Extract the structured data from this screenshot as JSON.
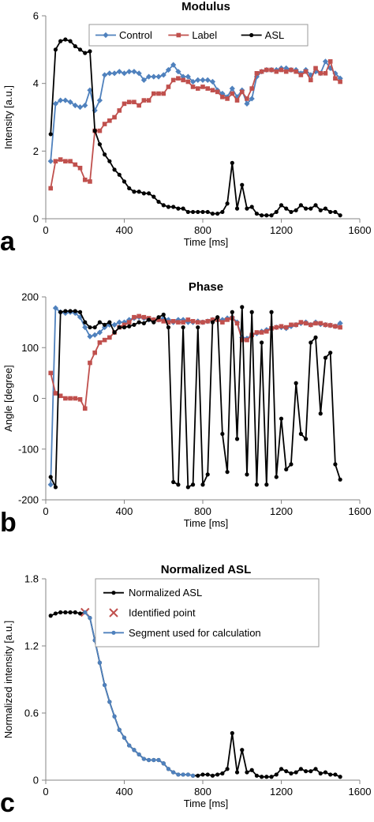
{
  "chart_data": [
    {
      "type": "line",
      "panel_letter": "a",
      "title": "Modulus",
      "xlabel": "Time [ms]",
      "ylabel": "Intensity [a.u.]",
      "xlim": [
        0,
        1600
      ],
      "ylim": [
        0,
        6
      ],
      "xticks": [
        0,
        400,
        800,
        1200,
        1600
      ],
      "yticks": [
        0,
        2,
        4,
        6
      ],
      "grid": false,
      "legend_position": "top",
      "series": [
        {
          "name": "Control",
          "color": "#4f81bd",
          "marker": "diamond",
          "x": [
            25,
            50,
            75,
            100,
            125,
            150,
            175,
            200,
            225,
            250,
            275,
            300,
            325,
            350,
            375,
            400,
            425,
            450,
            475,
            500,
            525,
            550,
            575,
            600,
            625,
            650,
            675,
            700,
            725,
            750,
            775,
            800,
            825,
            850,
            875,
            900,
            925,
            950,
            975,
            1000,
            1025,
            1050,
            1075,
            1100,
            1125,
            1150,
            1175,
            1200,
            1225,
            1250,
            1275,
            1300,
            1325,
            1350,
            1375,
            1400,
            1425,
            1450,
            1475,
            1500
          ],
          "y": [
            1.7,
            3.4,
            3.5,
            3.5,
            3.45,
            3.35,
            3.3,
            3.35,
            3.8,
            3.2,
            3.5,
            4.25,
            4.3,
            4.3,
            4.35,
            4.3,
            4.35,
            4.35,
            4.3,
            4.1,
            4.2,
            4.2,
            4.2,
            4.25,
            4.4,
            4.55,
            4.35,
            4.2,
            4.2,
            4.05,
            4.1,
            4.1,
            4.1,
            4.05,
            3.8,
            3.7,
            3.6,
            3.85,
            3.6,
            3.8,
            3.4,
            3.55,
            4.2,
            4.35,
            4.4,
            4.4,
            4.4,
            4.45,
            4.45,
            4.4,
            4.4,
            4.3,
            4.4,
            4.25,
            4.35,
            4.3,
            4.65,
            4.45,
            4.3,
            4.15
          ]
        },
        {
          "name": "Label",
          "color": "#c0504d",
          "marker": "square",
          "x": [
            25,
            50,
            75,
            100,
            125,
            150,
            175,
            200,
            225,
            250,
            275,
            300,
            325,
            350,
            375,
            400,
            425,
            450,
            475,
            500,
            525,
            550,
            575,
            600,
            625,
            650,
            675,
            700,
            725,
            750,
            775,
            800,
            825,
            850,
            875,
            900,
            925,
            950,
            975,
            1000,
            1025,
            1050,
            1075,
            1100,
            1125,
            1150,
            1175,
            1200,
            1225,
            1250,
            1275,
            1300,
            1325,
            1350,
            1375,
            1400,
            1425,
            1450,
            1475,
            1500
          ],
          "y": [
            0.9,
            1.7,
            1.75,
            1.7,
            1.7,
            1.6,
            1.5,
            1.15,
            1.1,
            2.6,
            2.6,
            2.8,
            2.9,
            3.0,
            3.2,
            3.4,
            3.45,
            3.45,
            3.35,
            3.5,
            3.5,
            3.7,
            3.7,
            3.7,
            3.9,
            4.1,
            4.15,
            4.1,
            4.05,
            3.9,
            3.85,
            3.9,
            3.85,
            3.8,
            3.75,
            3.6,
            3.55,
            3.7,
            3.5,
            3.75,
            3.55,
            3.85,
            4.3,
            4.35,
            4.4,
            4.4,
            4.35,
            4.4,
            4.35,
            4.4,
            4.35,
            4.25,
            4.35,
            4.1,
            4.45,
            4.3,
            4.3,
            4.65,
            4.15,
            4.05
          ]
        },
        {
          "name": "ASL",
          "color": "#000000",
          "marker": "circle",
          "x": [
            25,
            50,
            75,
            100,
            125,
            150,
            175,
            200,
            225,
            250,
            275,
            300,
            325,
            350,
            375,
            400,
            425,
            450,
            475,
            500,
            525,
            550,
            575,
            600,
            625,
            650,
            675,
            700,
            725,
            750,
            775,
            800,
            825,
            850,
            875,
            900,
            925,
            950,
            975,
            1000,
            1025,
            1050,
            1075,
            1100,
            1125,
            1150,
            1175,
            1200,
            1225,
            1250,
            1275,
            1300,
            1325,
            1350,
            1375,
            1400,
            1425,
            1450,
            1475,
            1500
          ],
          "y": [
            2.5,
            5.0,
            5.25,
            5.3,
            5.25,
            5.1,
            5.0,
            4.9,
            4.95,
            2.6,
            2.2,
            1.9,
            1.7,
            1.45,
            1.3,
            1.1,
            0.9,
            0.8,
            0.8,
            0.75,
            0.75,
            0.65,
            0.5,
            0.4,
            0.35,
            0.35,
            0.3,
            0.3,
            0.2,
            0.2,
            0.2,
            0.2,
            0.2,
            0.15,
            0.15,
            0.2,
            0.45,
            1.65,
            0.3,
            1.0,
            0.3,
            0.35,
            0.15,
            0.1,
            0.1,
            0.1,
            0.2,
            0.4,
            0.3,
            0.2,
            0.25,
            0.4,
            0.3,
            0.3,
            0.4,
            0.25,
            0.3,
            0.2,
            0.2,
            0.1
          ]
        }
      ]
    },
    {
      "type": "line",
      "panel_letter": "b",
      "title": "Phase",
      "xlabel": "Time [ms]",
      "ylabel": "Angle [degree]",
      "xlim": [
        0,
        1600
      ],
      "ylim": [
        -200,
        200
      ],
      "xticks": [
        0,
        400,
        800,
        1200,
        1600
      ],
      "yticks": [
        -200,
        -100,
        0,
        100,
        200
      ],
      "grid": false,
      "legend_position": "none",
      "series": [
        {
          "name": "Control",
          "color": "#4f81bd",
          "marker": "diamond",
          "x": [
            25,
            50,
            75,
            100,
            125,
            150,
            175,
            200,
            225,
            250,
            275,
            300,
            325,
            350,
            375,
            400,
            425,
            450,
            475,
            500,
            525,
            550,
            575,
            600,
            625,
            650,
            675,
            700,
            725,
            750,
            775,
            800,
            825,
            850,
            875,
            900,
            925,
            950,
            975,
            1000,
            1025,
            1050,
            1075,
            1100,
            1125,
            1150,
            1175,
            1200,
            1225,
            1250,
            1275,
            1300,
            1325,
            1350,
            1375,
            1400,
            1425,
            1450,
            1475,
            1500
          ],
          "y": [
            -170,
            178,
            170,
            168,
            170,
            168,
            160,
            140,
            122,
            125,
            130,
            140,
            145,
            145,
            150,
            150,
            155,
            158,
            160,
            158,
            155,
            155,
            155,
            158,
            155,
            150,
            155,
            155,
            150,
            150,
            152,
            150,
            152,
            155,
            155,
            155,
            158,
            160,
            150,
            120,
            118,
            125,
            128,
            132,
            135,
            138,
            140,
            140,
            138,
            142,
            145,
            148,
            150,
            145,
            150,
            146,
            145,
            144,
            142,
            148
          ]
        },
        {
          "name": "Label",
          "color": "#c0504d",
          "marker": "square",
          "x": [
            25,
            50,
            75,
            100,
            125,
            150,
            175,
            200,
            225,
            250,
            275,
            300,
            325,
            350,
            375,
            400,
            425,
            450,
            475,
            500,
            525,
            550,
            575,
            600,
            625,
            650,
            675,
            700,
            725,
            750,
            775,
            800,
            825,
            850,
            875,
            900,
            925,
            950,
            975,
            1000,
            1025,
            1050,
            1075,
            1100,
            1125,
            1150,
            1175,
            1200,
            1225,
            1250,
            1275,
            1300,
            1325,
            1350,
            1375,
            1400,
            1425,
            1450,
            1475,
            1500
          ],
          "y": [
            50,
            10,
            5,
            0,
            0,
            0,
            -2,
            -20,
            70,
            90,
            110,
            115,
            120,
            130,
            140,
            145,
            150,
            160,
            162,
            160,
            158,
            155,
            155,
            152,
            150,
            152,
            150,
            150,
            155,
            152,
            150,
            150,
            152,
            155,
            155,
            150,
            155,
            158,
            148,
            115,
            115,
            125,
            130,
            130,
            132,
            138,
            140,
            142,
            140,
            145,
            145,
            150,
            148,
            145,
            148,
            148,
            145,
            144,
            142,
            140
          ]
        },
        {
          "name": "ASL",
          "color": "#000000",
          "marker": "circle",
          "x": [
            25,
            50,
            75,
            100,
            125,
            150,
            175,
            200,
            225,
            250,
            275,
            300,
            325,
            350,
            375,
            400,
            425,
            450,
            475,
            500,
            525,
            550,
            575,
            600,
            625,
            650,
            675,
            700,
            725,
            750,
            775,
            800,
            825,
            850,
            875,
            900,
            925,
            950,
            975,
            1000,
            1025,
            1050,
            1075,
            1100,
            1125,
            1150,
            1175,
            1200,
            1225,
            1250,
            1275,
            1300,
            1325,
            1350,
            1375,
            1400,
            1425,
            1450,
            1475,
            1500
          ],
          "y": [
            -155,
            -175,
            170,
            172,
            172,
            172,
            170,
            150,
            140,
            140,
            150,
            145,
            150,
            130,
            140,
            140,
            142,
            145,
            150,
            148,
            155,
            150,
            160,
            165,
            140,
            -165,
            -170,
            140,
            -175,
            -170,
            140,
            -170,
            -150,
            150,
            160,
            -70,
            -145,
            170,
            -80,
            180,
            -150,
            170,
            -170,
            110,
            -170,
            170,
            -155,
            -40,
            -140,
            -130,
            30,
            -70,
            -80,
            110,
            120,
            -30,
            80,
            90,
            -130,
            -160
          ]
        }
      ]
    },
    {
      "type": "line",
      "panel_letter": "c",
      "title": "Normalized ASL",
      "xlabel": "Time [ms]",
      "ylabel": "Normalized intensity [a.u.]",
      "xlim": [
        0,
        1600
      ],
      "ylim": [
        0,
        1.8
      ],
      "xticks": [
        0,
        400,
        800,
        1200,
        1600
      ],
      "yticks": [
        0,
        0.6,
        1.2,
        1.8
      ],
      "grid": false,
      "legend_position": "top-right",
      "series": [
        {
          "name": "Normalized ASL",
          "color": "#000000",
          "marker": "circle",
          "x": [
            25,
            50,
            75,
            100,
            125,
            150,
            175,
            200,
            225,
            250,
            275,
            300,
            325,
            350,
            375,
            400,
            425,
            450,
            475,
            500,
            525,
            550,
            575,
            600,
            625,
            650,
            675,
            700,
            725,
            750,
            775,
            800,
            825,
            850,
            875,
            900,
            925,
            950,
            975,
            1000,
            1025,
            1050,
            1075,
            1100,
            1125,
            1150,
            1175,
            1200,
            1225,
            1250,
            1275,
            1300,
            1325,
            1350,
            1375,
            1400,
            1425,
            1450,
            1475,
            1500
          ],
          "y": [
            1.47,
            1.49,
            1.5,
            1.5,
            1.5,
            1.5,
            1.49,
            1.5,
            1.45,
            1.25,
            1.05,
            0.85,
            0.7,
            0.57,
            0.45,
            0.38,
            0.31,
            0.27,
            0.23,
            0.19,
            0.18,
            0.18,
            0.18,
            0.15,
            0.1,
            0.07,
            0.05,
            0.05,
            0.05,
            0.04,
            0.04,
            0.05,
            0.05,
            0.04,
            0.05,
            0.06,
            0.1,
            0.42,
            0.07,
            0.27,
            0.07,
            0.09,
            0.04,
            0.03,
            0.03,
            0.03,
            0.05,
            0.1,
            0.08,
            0.06,
            0.07,
            0.1,
            0.08,
            0.08,
            0.1,
            0.06,
            0.07,
            0.05,
            0.05,
            0.03
          ]
        },
        {
          "name": "Identified point",
          "color": "#c0504d",
          "marker": "x",
          "x": [
            200
          ],
          "y": [
            1.5
          ]
        },
        {
          "name": "Segment used for calculation",
          "color": "#4f81bd",
          "marker": "circle",
          "x": [
            200,
            225,
            250,
            275,
            300,
            325,
            350,
            375,
            400,
            425,
            450,
            475,
            500,
            525,
            550,
            575,
            600,
            625,
            650,
            675,
            700,
            725,
            750
          ],
          "y": [
            1.5,
            1.45,
            1.25,
            1.05,
            0.85,
            0.7,
            0.57,
            0.45,
            0.38,
            0.31,
            0.27,
            0.23,
            0.19,
            0.18,
            0.18,
            0.18,
            0.15,
            0.1,
            0.07,
            0.05,
            0.05,
            0.05,
            0.04
          ]
        }
      ]
    }
  ]
}
